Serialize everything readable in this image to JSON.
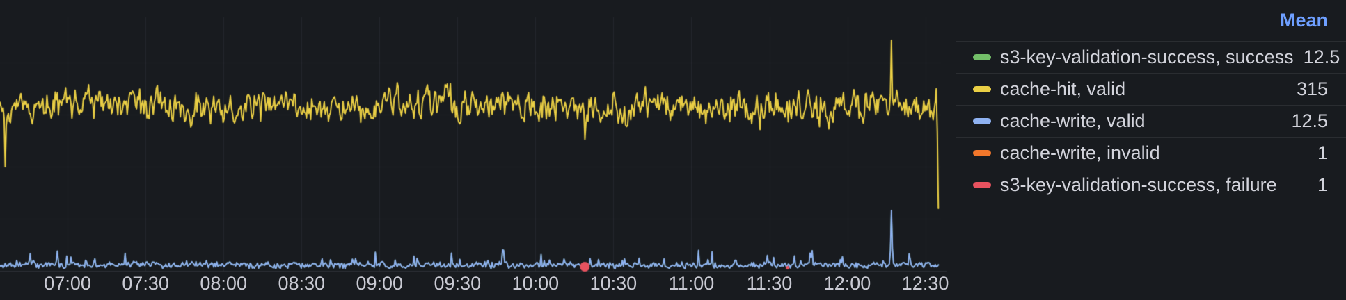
{
  "panel": {
    "background": "#181B1F",
    "text_color": "#CCCCDC",
    "grid_color": "rgba(204,204,220,0.07)",
    "axis_line_color": "rgba(204,204,220,0.12)"
  },
  "legend": {
    "position": "right",
    "header": {
      "label": "Mean",
      "color": "#6E9FFF"
    },
    "rows": [
      {
        "label": "s3-key-validation-success, success",
        "mean": "12.5",
        "color": "#73BF69"
      },
      {
        "label": "cache-hit, valid",
        "mean": "315",
        "color": "#EACF45"
      },
      {
        "label": "cache-write, valid",
        "mean": "12.5",
        "color": "#8FB2F2"
      },
      {
        "label": "cache-write, invalid",
        "mean": "1",
        "color": "#F2772B"
      },
      {
        "label": "s3-key-validation-success, failure",
        "mean": "1",
        "color": "#E8525F"
      }
    ]
  },
  "chart_data": {
    "type": "line",
    "title": "",
    "xlabel": "",
    "ylabel": "",
    "legend_position": "right",
    "grid": true,
    "seed": 11,
    "x_axis": {
      "start": "06:34",
      "end": "12:36",
      "tick_interval_minutes": 30,
      "tick_labels": [
        "07:00",
        "07:30",
        "08:00",
        "08:30",
        "09:00",
        "09:30",
        "10:00",
        "10:30",
        "11:00",
        "11:30",
        "12:00",
        "12:30"
      ]
    },
    "y_axis": {
      "visible": false,
      "ylim": [
        0,
        487
      ],
      "gridline_values": [
        100,
        200,
        300,
        400
      ]
    },
    "series": [
      {
        "label": "s3-key-validation-success, success",
        "color": "#73BF69",
        "mean": 12.5,
        "plot": {
          "type": "line",
          "line_width": 1.5,
          "same_as": "cache-write, valid",
          "note": "coincides with cache-write valid and is hidden beneath it"
        }
      },
      {
        "label": "cache-hit, valid",
        "color": "#EACF45",
        "mean": 315,
        "plot": {
          "type": "line",
          "line_width": 2,
          "gen": {
            "t_start": "06:34",
            "t_end": "12:35",
            "points": 900,
            "base": 315,
            "persistence": 0.5,
            "step": 22,
            "jitter": 11,
            "min": 60
          },
          "events": [
            {
              "time": "06:36",
              "value": 200
            },
            {
              "time": "10:19",
              "value": 253
            },
            {
              "time": "12:17",
              "value": 443
            },
            {
              "time": "12:34",
              "value": 350
            },
            {
              "time": "12:35",
              "value": 120
            }
          ]
        }
      },
      {
        "label": "cache-write, valid",
        "color": "#8FB2F2",
        "mean": 12.5,
        "plot": {
          "type": "line",
          "line_width": 1.9,
          "gen": {
            "t_start": "06:34",
            "t_end": "12:35",
            "points": 900,
            "base": 11,
            "persistence": 0.3,
            "step": 4,
            "jitter": 3,
            "min": 2,
            "spike_prob": 0.15,
            "spike_amp": 30
          },
          "events": [
            {
              "time": "06:56",
              "value": 38
            },
            {
              "time": "12:17",
              "value": 116
            }
          ]
        }
      },
      {
        "label": "cache-write, invalid",
        "color": "#F2772B",
        "mean": 1,
        "plot": {
          "type": "none",
          "note": "flat near zero; not visually distinguishable in plot"
        }
      },
      {
        "label": "s3-key-validation-success, failure",
        "color": "#E8525F",
        "mean": 1,
        "plot": {
          "type": "points",
          "points": [
            {
              "time": "10:19",
              "y_value": 8,
              "radius": 7
            },
            {
              "time": "11:37",
              "y_value": 6,
              "radius": 2.5
            }
          ]
        }
      }
    ]
  }
}
